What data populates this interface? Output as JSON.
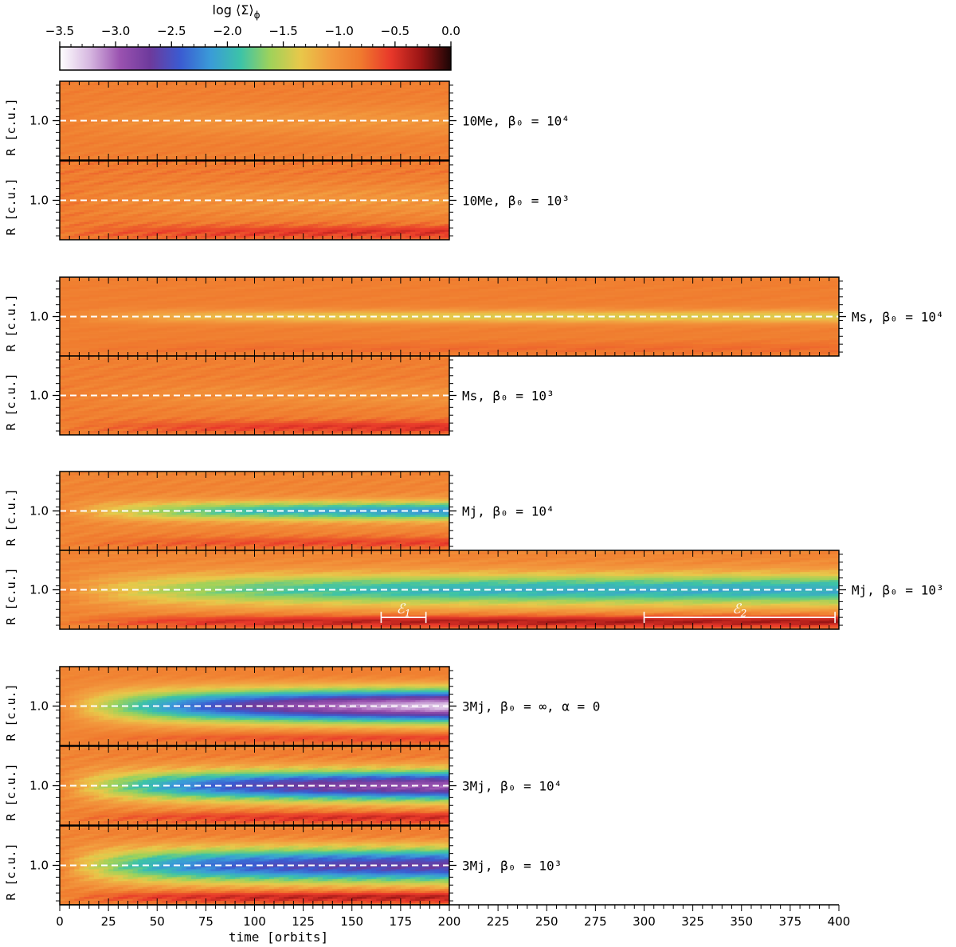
{
  "chart_data": {
    "type": "heatmap",
    "colorbar": {
      "label": "log ⟨Σ⟩",
      "label_subscript": "ϕ",
      "range": [
        -3.5,
        0.0
      ],
      "ticks": [
        "−3.5",
        "−3.0",
        "−2.5",
        "−2.0",
        "−1.5",
        "−1.0",
        "−0.5",
        "0.0"
      ],
      "colors": [
        "#ffffff",
        "#d6b7e0",
        "#9a52b0",
        "#6d3a9c",
        "#3b5bd1",
        "#3a9bd8",
        "#3cc3a8",
        "#9fd25a",
        "#e8c84a",
        "#f29a3e",
        "#f07a2e",
        "#e8382a",
        "#9a1515",
        "#1a0505"
      ]
    },
    "xlabel": "time [orbits]",
    "x_ticks": [
      0,
      25,
      50,
      75,
      100,
      125,
      150,
      175,
      200,
      225,
      250,
      275,
      300,
      325,
      350,
      375,
      400
    ],
    "ylabel": "R [c.u.]",
    "y_tick_label": "1.0",
    "panels": [
      {
        "id": "10Me-b4",
        "label": "10Me,  β₀ = 10⁴",
        "t_max": 200,
        "base": -0.85,
        "gap_depth": 0.2,
        "gap_width": 0.25,
        "gap_growth": 40,
        "inner_ridge": 0.0,
        "outer_ridge": 0.0,
        "wobble": 0.06
      },
      {
        "id": "10Me-b3",
        "label": "10Me,  β₀ = 10³",
        "t_max": 200,
        "base": -0.82,
        "gap_depth": 0.25,
        "gap_width": 0.3,
        "gap_growth": 60,
        "inner_ridge": 0.35,
        "outer_ridge": 0.0,
        "wobble": 0.1
      },
      {
        "id": "Ms-b4",
        "label": "Ms,  β₀ = 10⁴",
        "t_max": 400,
        "base": -0.85,
        "gap_depth": 0.55,
        "gap_width": 0.12,
        "gap_growth": 60,
        "inner_ridge": 0.1,
        "outer_ridge": 0.0,
        "wobble": 0.04
      },
      {
        "id": "Ms-b3",
        "label": "Ms,  β₀ = 10³",
        "t_max": 200,
        "base": -0.85,
        "gap_depth": 0.2,
        "gap_width": 0.2,
        "gap_growth": 80,
        "inner_ridge": 0.4,
        "outer_ridge": 0.0,
        "wobble": 0.08
      },
      {
        "id": "Mj-b4",
        "label": "Mj,  β₀ = 10⁴",
        "t_max": 200,
        "base": -0.9,
        "gap_depth": 1.35,
        "gap_width": 0.18,
        "gap_growth": 70,
        "inner_ridge": 0.35,
        "outer_ridge": 0.0,
        "wobble": 0.08
      },
      {
        "id": "Mj-b3",
        "label": "Mj,  β₀ = 10³",
        "t_max": 400,
        "base": -0.9,
        "gap_depth": 1.15,
        "gap_width": 0.3,
        "gap_growth": 70,
        "inner_ridge": 0.6,
        "outer_ridge": 0.0,
        "wobble": 0.08,
        "annotations": [
          {
            "text": "ℰ",
            "sub": "1",
            "t0": 165,
            "t1": 188
          },
          {
            "text": "ℰ",
            "sub": "2",
            "t0": 300,
            "t1": 398
          }
        ]
      },
      {
        "id": "3Mj-binf",
        "label": "3Mj,  β₀ = ∞,  α = 0",
        "t_max": 200,
        "base": -0.9,
        "gap_depth": 2.7,
        "gap_width": 0.3,
        "gap_growth": 90,
        "inner_ridge": 0.4,
        "outer_ridge": 0.1,
        "wobble": 0.05
      },
      {
        "id": "3Mj-b4",
        "label": "3Mj,  β₀ = 10⁴",
        "t_max": 200,
        "base": -0.9,
        "gap_depth": 2.2,
        "gap_width": 0.28,
        "gap_growth": 70,
        "inner_ridge": 0.5,
        "outer_ridge": 0.1,
        "wobble": 0.1
      },
      {
        "id": "3Mj-b3",
        "label": "3Mj,  β₀ = 10³",
        "t_max": 200,
        "base": -0.9,
        "gap_depth": 1.8,
        "gap_width": 0.32,
        "gap_growth": 50,
        "inner_ridge": 0.6,
        "outer_ridge": 0.1,
        "wobble": 0.1
      }
    ]
  }
}
